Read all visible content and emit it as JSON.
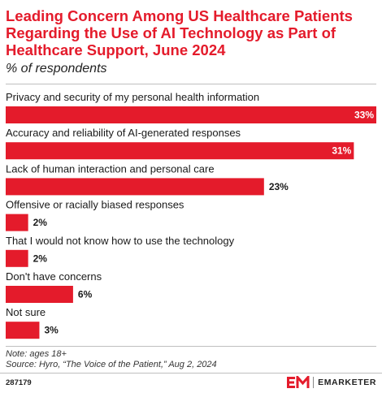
{
  "header": {
    "title": "Leading Concern Among US Healthcare Patients Regarding the Use of AI Technology as Part of Healthcare Support, June 2024",
    "subtitle": "% of respondents"
  },
  "chart_data": {
    "type": "bar",
    "orientation": "horizontal",
    "categories": [
      "Privacy and security of my personal health information",
      "Accuracy and reliability of AI-generated responses",
      "Lack of human interaction and personal care",
      "Offensive or racially biased responses",
      "That I would not know how to use the technology",
      "Don't have concerns",
      "Not sure"
    ],
    "values": [
      33,
      31,
      23,
      2,
      2,
      6,
      3
    ],
    "value_labels": [
      "33%",
      "31%",
      "23%",
      "2%",
      "2%",
      "6%",
      "3%"
    ],
    "xlim": [
      0,
      33
    ],
    "grid": false,
    "bar_color": "#e41b2b"
  },
  "footer": {
    "note": "Note: ages 18+",
    "source": "Source: Hyro, “The Voice of the Patient,” Aug 2, 2024",
    "chart_id": "287179",
    "brand": "EMARKETER",
    "brand_logo_icon": "em-logo-icon"
  },
  "colors": {
    "accent": "#e41b2b",
    "text": "#1a1a1a",
    "rule": "#bfbfbf"
  }
}
